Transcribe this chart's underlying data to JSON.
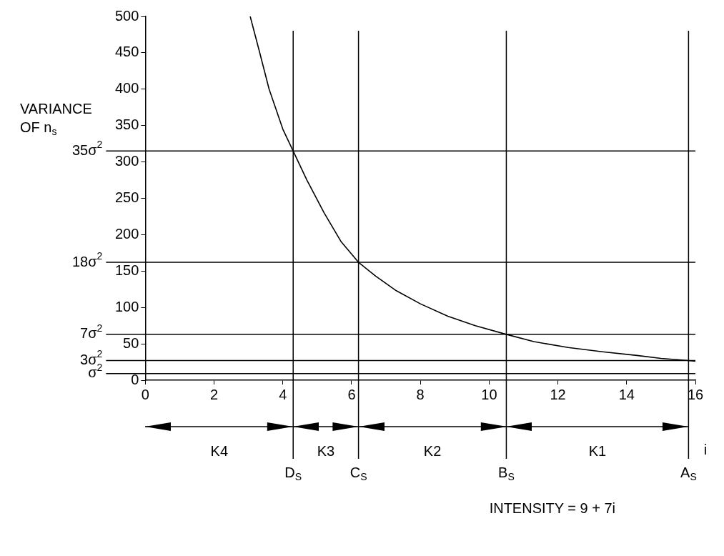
{
  "chart_data": {
    "type": "line",
    "xlabel": "i",
    "ylabel": "VARIANCE OF n$_{s}$",
    "x": [
      3.05,
      3.3,
      3.6,
      4.0,
      4.3,
      4.7,
      5.2,
      5.7,
      6.2,
      6.7,
      7.3,
      8.0,
      8.8,
      9.6,
      10.5,
      11.3,
      12.3,
      13.3,
      14.3,
      15.0,
      15.8,
      16.0
    ],
    "series": [
      {
        "color": "#000000",
        "values": [
          500,
          455,
          400,
          345,
          315,
          275,
          230,
          190,
          162,
          143,
          123,
          105,
          88,
          75,
          63,
          53,
          45,
          39,
          34,
          30,
          27,
          26
        ]
      }
    ],
    "xlim": [
      0,
      16
    ],
    "xticks": [
      0,
      2,
      4,
      6,
      8,
      10,
      12,
      14,
      16
    ],
    "ylim": [
      0,
      500
    ],
    "yticks": [
      0,
      50,
      100,
      150,
      200,
      250,
      300,
      350,
      400,
      450,
      500
    ],
    "grid": false,
    "marker": "none",
    "line_style": "solid",
    "ref_lines": [
      {
        "axis": "y",
        "value": 315,
        "label": "35σ$^{2}$"
      },
      {
        "axis": "y",
        "value": 162,
        "label": "18σ$^{2}$"
      },
      {
        "axis": "y",
        "value": 63,
        "label": "7σ$^{2}$"
      },
      {
        "axis": "y",
        "value": 27,
        "label": "3σ$^{2}$"
      },
      {
        "axis": "y",
        "value": 9,
        "label": "σ$^{2}$"
      },
      {
        "axis": "x",
        "value": 4.3,
        "label": "D$_{S}$"
      },
      {
        "axis": "x",
        "value": 6.2,
        "label": "C$_{S}$"
      },
      {
        "axis": "x",
        "value": 10.5,
        "label": "B$_{S}$"
      },
      {
        "axis": "x",
        "value": 15.8,
        "label": "A$_{S}$"
      }
    ],
    "annotations": [
      "K4",
      "K3",
      "K2",
      "K1",
      "INTENSITY = 9 + 7i"
    ]
  }
}
